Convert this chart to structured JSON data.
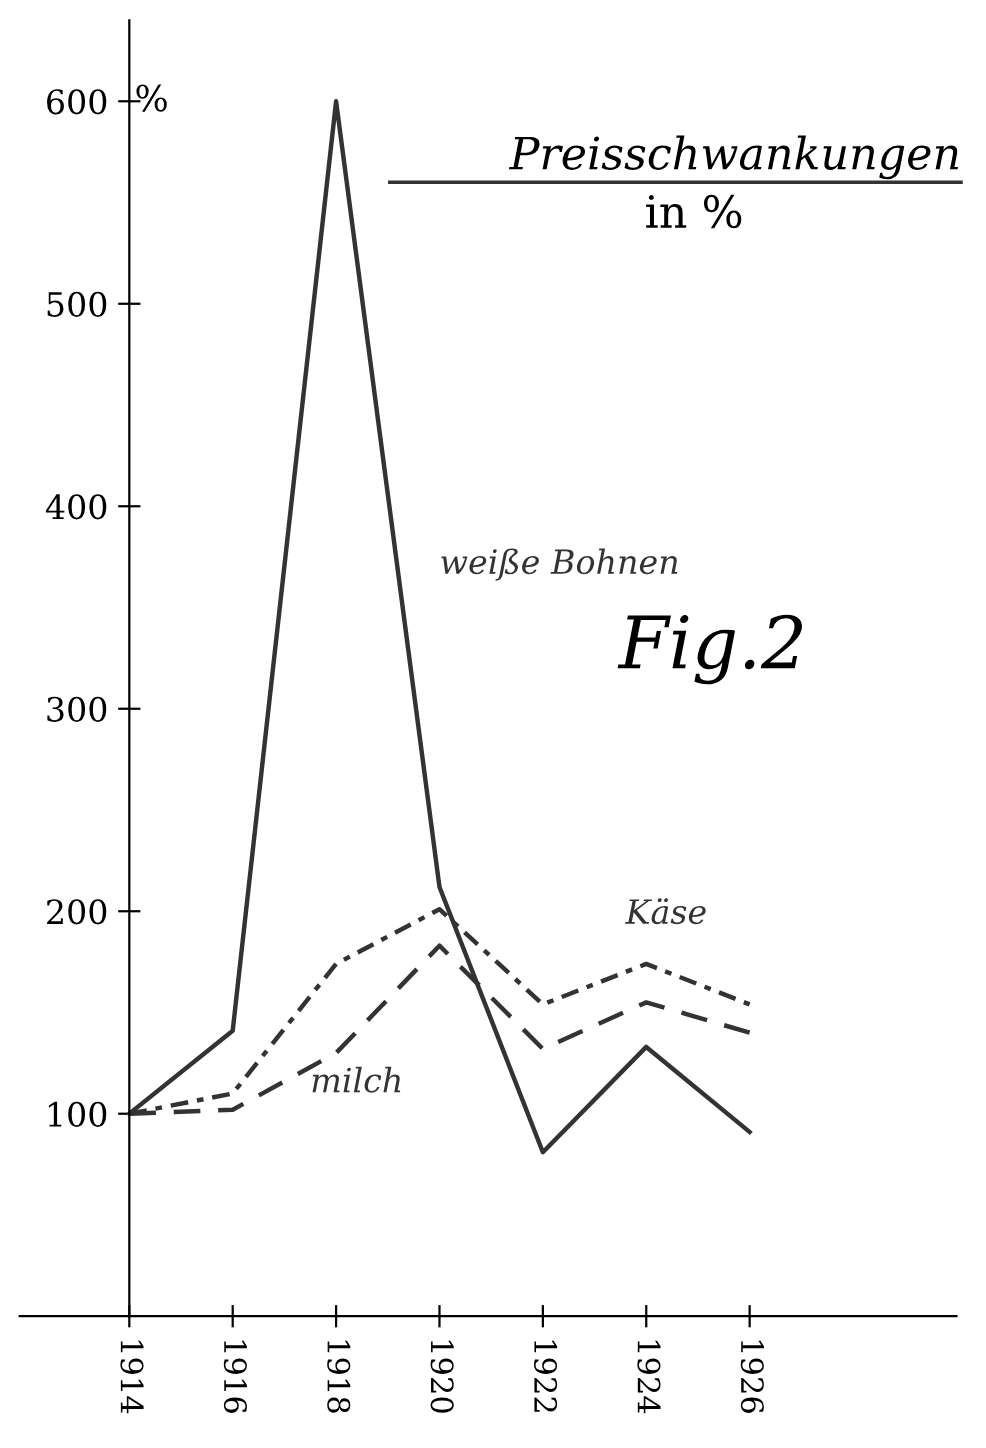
{
  "chart_data": {
    "type": "line",
    "title": "Preisschwankungen",
    "subtitle": "in %",
    "ylabel": "%",
    "annotations": [
      "Fig.2"
    ],
    "categories": [
      "1914",
      "1916",
      "1918",
      "1920",
      "1922",
      "1924",
      "1926"
    ],
    "series": [
      {
        "name": "weiße Bohnen",
        "color": "#333333",
        "line_style": "solid",
        "values": [
          100,
          141,
          600,
          212,
          81,
          133,
          91
        ]
      },
      {
        "name": "Käse",
        "color": "#333333",
        "line_style": "dashdot",
        "values": [
          100,
          110,
          174,
          201,
          154,
          174,
          154
        ]
      },
      {
        "name": "milch",
        "color": "#333333",
        "line_style": "dashed",
        "values": [
          100,
          102,
          130,
          183,
          132,
          155,
          140
        ]
      }
    ],
    "ylim": [
      0,
      640
    ],
    "yticks": [
      100,
      200,
      300,
      400,
      500,
      600
    ],
    "grid": false,
    "legend": false,
    "marker": "none"
  }
}
